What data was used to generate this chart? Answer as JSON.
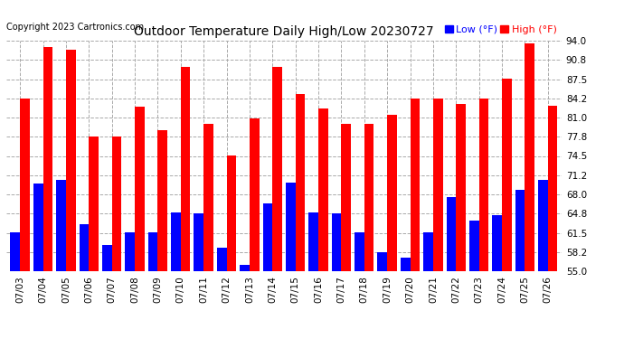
{
  "title": "Outdoor Temperature Daily High/Low 20230727",
  "copyright": "Copyright 2023 Cartronics.com",
  "legend_low": "Low",
  "legend_high": "High",
  "legend_unit": "(°F)",
  "low_color": "#0000ff",
  "high_color": "#ff0000",
  "background_color": "#ffffff",
  "grid_color": "#aaaaaa",
  "ylim": [
    55.0,
    94.0
  ],
  "ybase": 55.0,
  "yticks": [
    55.0,
    58.2,
    61.5,
    64.8,
    68.0,
    71.2,
    74.5,
    77.8,
    81.0,
    84.2,
    87.5,
    90.8,
    94.0
  ],
  "dates": [
    "07/03",
    "07/04",
    "07/05",
    "07/06",
    "07/07",
    "07/08",
    "07/09",
    "07/10",
    "07/11",
    "07/12",
    "07/13",
    "07/14",
    "07/15",
    "07/16",
    "07/17",
    "07/18",
    "07/19",
    "07/20",
    "07/21",
    "07/22",
    "07/23",
    "07/24",
    "07/25",
    "07/26"
  ],
  "highs": [
    84.2,
    93.0,
    92.5,
    77.8,
    77.8,
    82.8,
    78.8,
    89.6,
    80.0,
    74.5,
    80.8,
    89.6,
    85.0,
    82.5,
    80.0,
    80.0,
    81.5,
    84.2,
    84.2,
    83.3,
    84.2,
    87.5,
    93.5,
    83.0
  ],
  "lows": [
    61.5,
    69.8,
    70.5,
    63.0,
    59.5,
    61.5,
    61.5,
    65.0,
    64.8,
    59.0,
    56.0,
    66.5,
    70.0,
    65.0,
    64.8,
    61.5,
    58.2,
    57.3,
    61.5,
    67.5,
    63.5,
    64.5,
    68.8,
    70.5
  ],
  "bar_width": 0.42,
  "title_fontsize": 10,
  "tick_fontsize": 7.5,
  "copyright_fontsize": 7,
  "legend_fontsize": 8
}
